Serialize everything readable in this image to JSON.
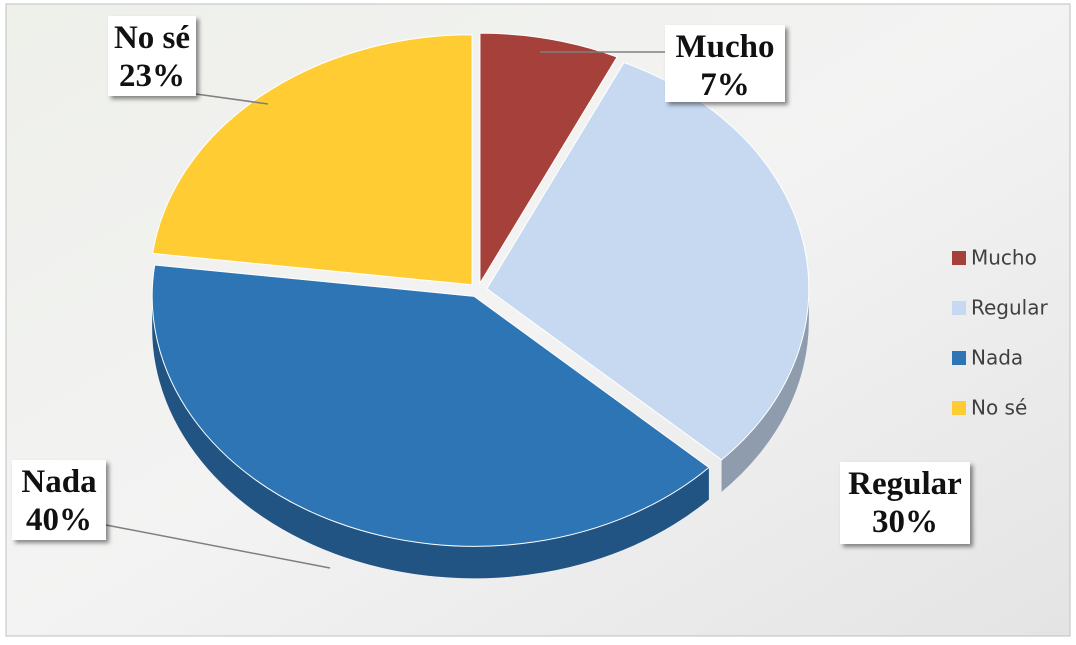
{
  "chart_data": {
    "type": "pie",
    "categories": [
      "Mucho",
      "Regular",
      "Nada",
      "No sé"
    ],
    "values": [
      7,
      30,
      40,
      23
    ],
    "value_labels": [
      "7%",
      "30%",
      "40%",
      "23%"
    ],
    "colors": [
      "#a5403b",
      "#c6d9f1",
      "#2e75b6",
      "#ffcc33"
    ],
    "legend": "right"
  }
}
